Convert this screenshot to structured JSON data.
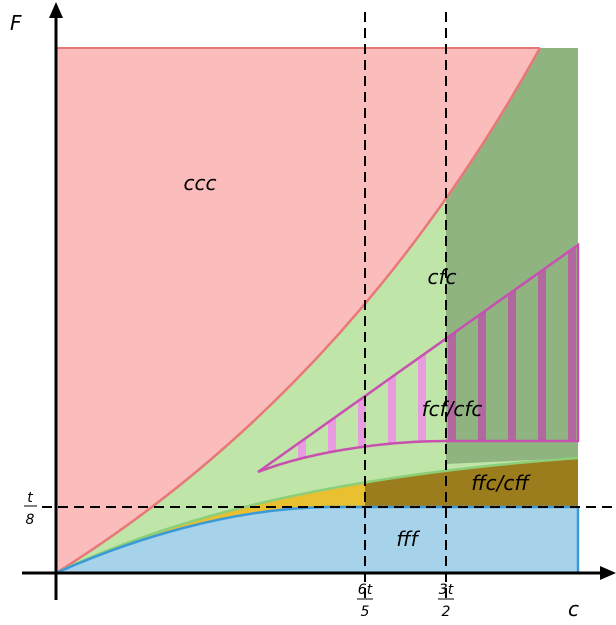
{
  "axes": {
    "x_label": "c",
    "y_label": "F"
  },
  "ticks": {
    "x": [
      {
        "num": "6t",
        "den": "5"
      },
      {
        "num": "3t",
        "den": "2"
      }
    ],
    "y": [
      {
        "num": "t",
        "den": "8"
      }
    ]
  },
  "regions": {
    "ccc": "ccc",
    "cfc": "cfc",
    "fcf_cfc": "fcf/cfc",
    "ffc_cff": "ffc/cff",
    "fff": "fff"
  },
  "colors": {
    "ccc": "#fbbcbc",
    "ccc_edge": "#e87878",
    "cfc": "#bfe6a8",
    "cfc_dark": "#8fb480",
    "fff": "#a6d2ea",
    "fff_edge": "#3a9ad8",
    "ffc": "#e8c030",
    "ffc_dark": "#9c7d1e",
    "fcf_edge": "#c850b0",
    "fcf_stripe": "#e79ce0",
    "fcf_stripe_dark": "#b0689e"
  }
}
